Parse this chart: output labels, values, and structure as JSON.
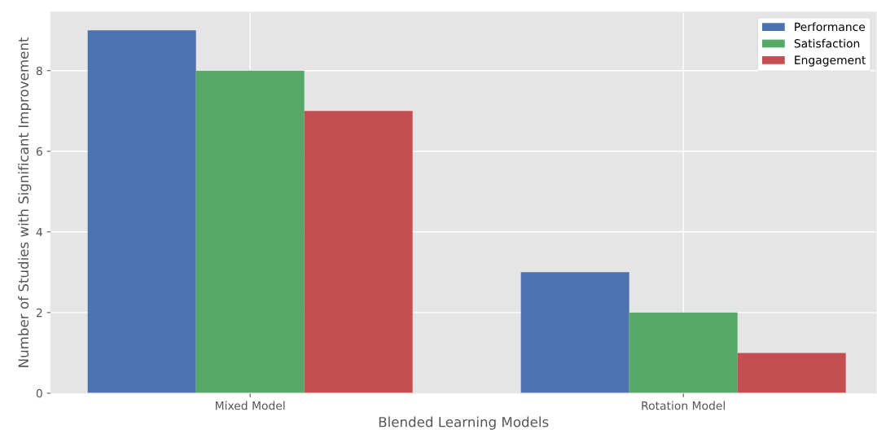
{
  "chart_data": {
    "type": "bar",
    "xlabel": "Blended Learning Models",
    "ylabel": "Number of Studies with Significant Improvement",
    "categories": [
      "Mixed Model",
      "Rotation Model"
    ],
    "series": [
      {
        "name": "Performance",
        "color": "#4c72b0",
        "values": [
          9,
          3
        ]
      },
      {
        "name": "Satisfaction",
        "color": "#55a868",
        "values": [
          8,
          2
        ]
      },
      {
        "name": "Engagement",
        "color": "#c44e52",
        "values": [
          7,
          1
        ]
      }
    ],
    "ylim": [
      0,
      9.45
    ],
    "yticks": [
      0,
      2,
      4,
      6,
      8
    ],
    "grid": true,
    "legend": "top right"
  }
}
